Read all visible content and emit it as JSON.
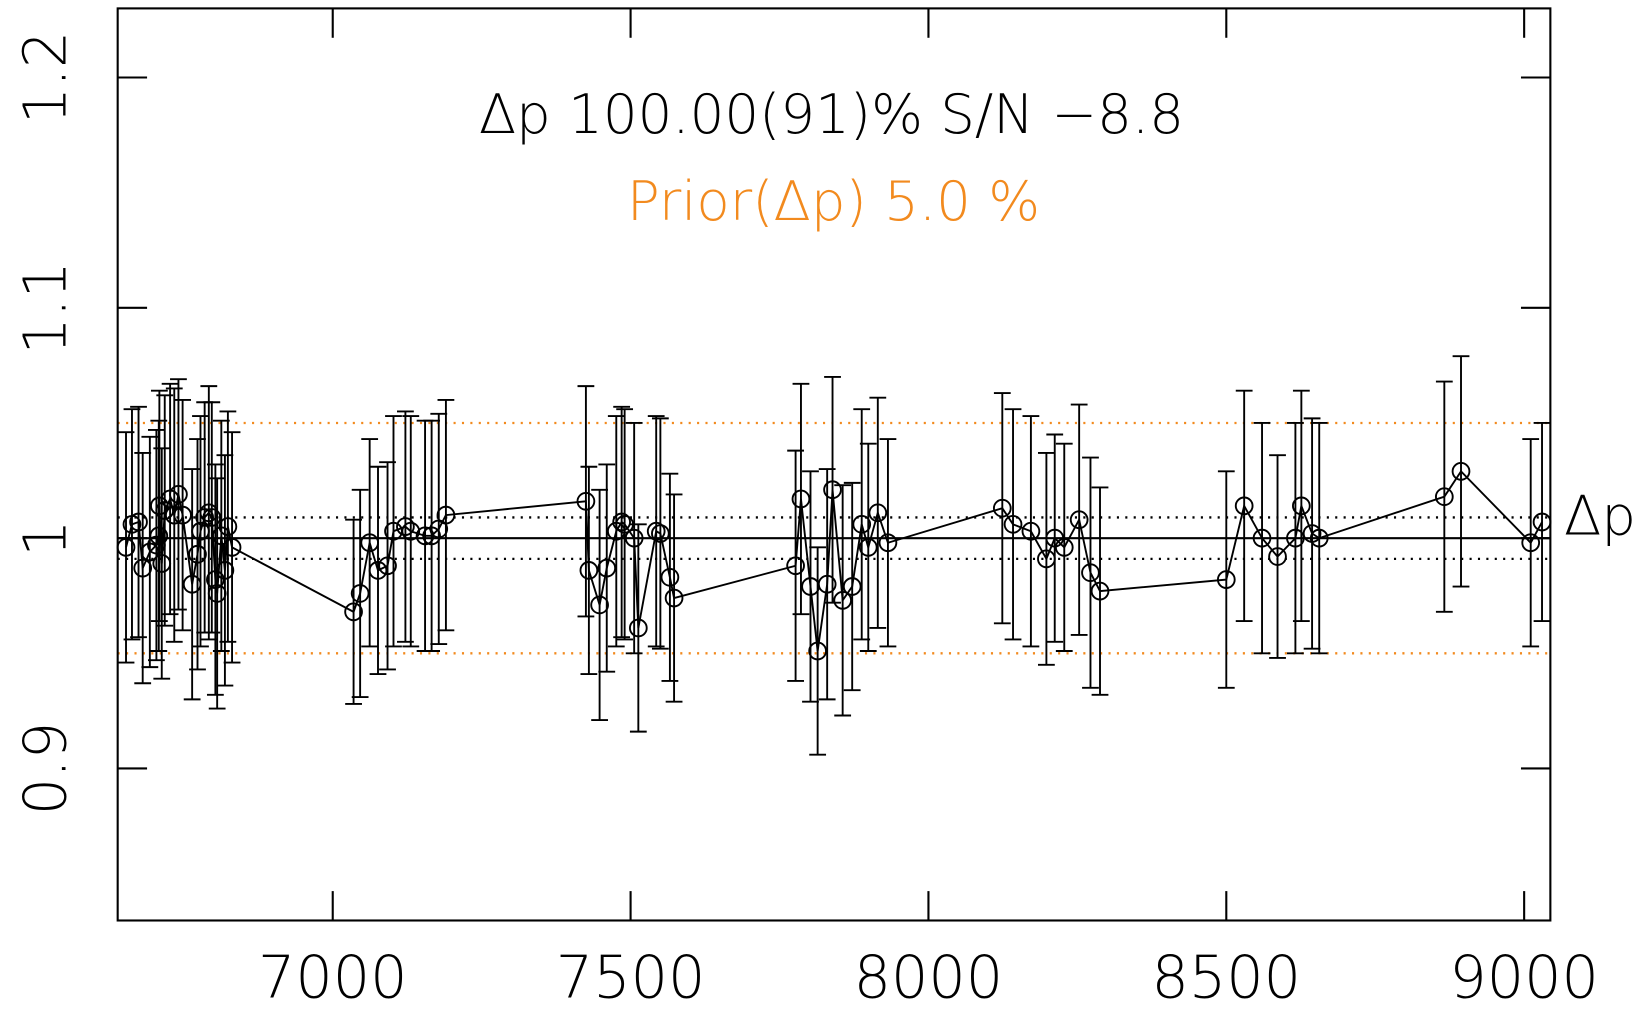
{
  "chart_data": {
    "type": "errorbar",
    "title": "Δp 100.00(91)% S/N −8.8",
    "subtitle": "Prior(Δp) 5.0 %",
    "subtitle_color": "#f28a1e",
    "xlim": [
      6639,
      9044
    ],
    "ylim": [
      0.834,
      1.23
    ],
    "xticks": [
      7000,
      7500,
      8000,
      8500,
      9000
    ],
    "yticks": [
      0.9,
      1,
      1.1,
      1.2
    ],
    "hlines": [
      {
        "value": 1,
        "style": "solid",
        "color": "#000000"
      },
      {
        "value": 1.009,
        "style": "dotted",
        "color": "#000000"
      },
      {
        "value": 0.991,
        "style": "dotted",
        "color": "#000000"
      },
      {
        "value": 1.05,
        "style": "dotted",
        "color": "#f28a1e"
      },
      {
        "value": 0.95,
        "style": "dotted",
        "color": "#f28a1e"
      }
    ],
    "series": [
      {
        "name": "Δp",
        "color": "#000000",
        "x": [
          6653,
          6663,
          6674,
          6681,
          6693,
          6704,
          6708,
          6709,
          6713,
          6718,
          6727,
          6734,
          6741,
          6748,
          6764,
          6773,
          6778,
          6785,
          6792,
          6797,
          6803,
          6806,
          6813,
          6819,
          6824,
          6831,
          7035,
          7046,
          7062,
          7076,
          7092,
          7102,
          7122,
          7131,
          7155,
          7166,
          7178,
          7190,
          7425,
          7430,
          7448,
          7460,
          7476,
          7485,
          7490,
          7506,
          7513,
          7543,
          7550,
          7566,
          7573,
          7777,
          7786,
          7802,
          7814,
          7830,
          7839,
          7856,
          7872,
          7888,
          7899,
          7915,
          7932,
          8124,
          8142,
          8172,
          8198,
          8212,
          8228,
          8253,
          8272,
          8288,
          8500,
          8530,
          8560,
          8586,
          8616,
          8626,
          8644,
          8656,
          8866,
          8894,
          9011,
          9030
        ],
        "values": [
          0.996,
          1.006,
          1.007,
          0.987,
          0.994,
          0.997,
          1.001,
          1.014,
          0.989,
          1.012,
          1.017,
          1.01,
          1.019,
          1.01,
          0.98,
          0.993,
          1.003,
          1.009,
          1.011,
          1.009,
          0.982,
          0.976,
          1.001,
          0.986,
          1.005,
          0.996,
          0.968,
          0.976,
          0.998,
          0.986,
          0.988,
          1.003,
          1.005,
          1.003,
          1.001,
          1.001,
          1.004,
          1.01,
          1.016,
          0.986,
          0.971,
          0.987,
          1.003,
          1.007,
          1.006,
          1.0,
          0.961,
          1.003,
          1.002,
          0.983,
          0.974,
          0.988,
          1.017,
          0.979,
          0.951,
          0.98,
          1.021,
          0.973,
          0.979,
          1.006,
          0.996,
          1.011,
          0.998,
          1.013,
          1.006,
          1.003,
          0.991,
          1.0,
          0.996,
          1.008,
          0.985,
          0.977,
          0.982,
          1.014,
          1.0,
          0.992,
          1.0,
          1.014,
          1.002,
          1.0,
          1.018,
          1.029,
          0.998,
          1.007
        ],
        "errors": [
          0.05,
          0.05,
          0.05,
          0.05,
          0.05,
          0.05,
          0.05,
          0.05,
          0.05,
          0.05,
          0.05,
          0.055,
          0.05,
          0.05,
          0.05,
          0.05,
          0.05,
          0.05,
          0.055,
          0.05,
          0.05,
          0.05,
          0.05,
          0.05,
          0.05,
          0.05,
          0.04,
          0.045,
          0.045,
          0.045,
          0.045,
          0.05,
          0.05,
          0.05,
          0.05,
          0.05,
          0.05,
          0.05,
          0.05,
          0.045,
          0.05,
          0.045,
          0.05,
          0.05,
          0.05,
          0.05,
          0.045,
          0.05,
          0.05,
          0.045,
          0.045,
          0.05,
          0.05,
          0.05,
          0.045,
          0.05,
          0.049,
          0.05,
          0.045,
          0.05,
          0.045,
          0.05,
          0.045,
          0.05,
          0.05,
          0.05,
          0.046,
          0.045,
          0.045,
          0.05,
          0.05,
          0.045,
          0.047,
          0.05,
          0.05,
          0.044,
          0.05,
          0.05,
          0.05,
          0.05,
          0.05,
          0.05,
          0.045,
          0.043
        ]
      }
    ]
  }
}
